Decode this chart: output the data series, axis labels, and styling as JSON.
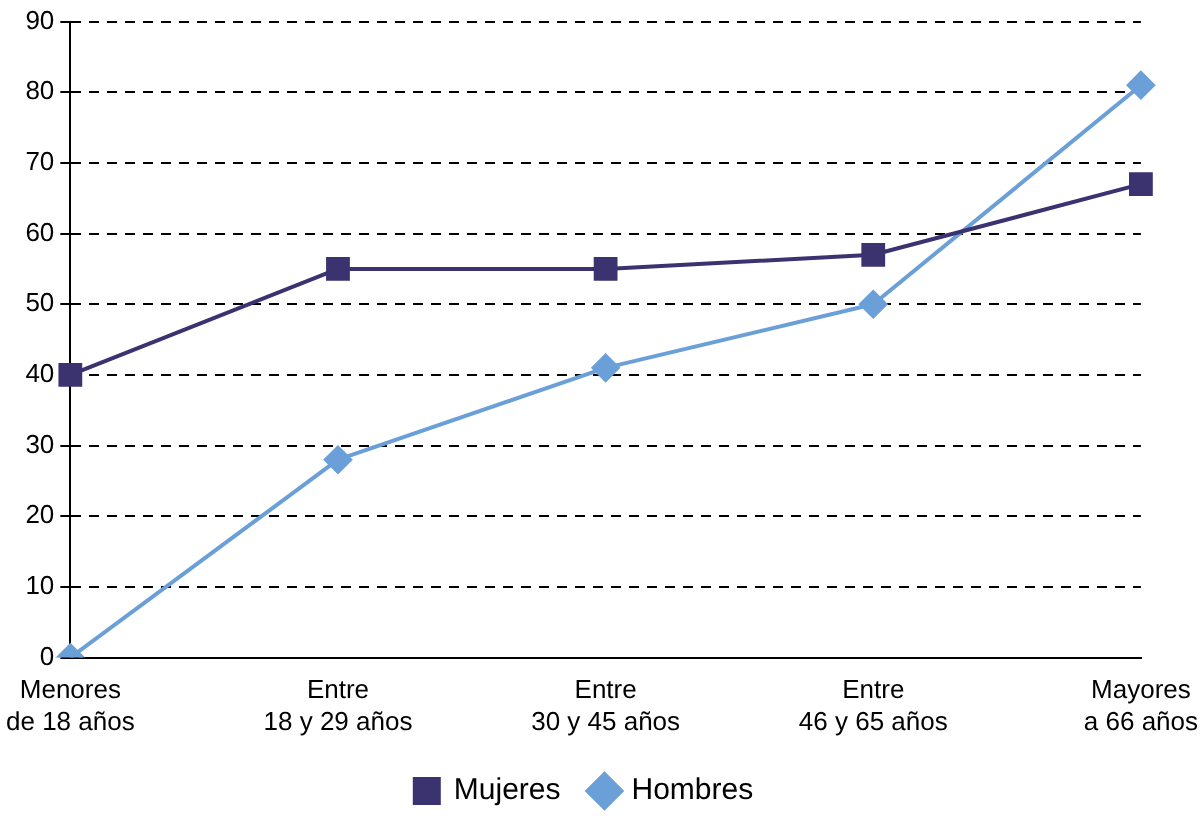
{
  "chart_data": {
    "type": "line",
    "categories": [
      "Menores\nde 18 años",
      "Entre\n18 y 29 años",
      "Entre\n30 y 45 años",
      "Entre\n46 y 65 años",
      "Mayores\na 66 años"
    ],
    "series": [
      {
        "name": "Mujeres",
        "color": "#3b3270",
        "marker": "square",
        "values": [
          40,
          55,
          55,
          57,
          67
        ]
      },
      {
        "name": "Hombres",
        "color": "#6a9fd8",
        "marker": "diamond",
        "values": [
          0,
          28,
          41,
          50,
          81
        ]
      }
    ],
    "ylim": [
      0,
      90
    ],
    "yticks": [
      0,
      10,
      20,
      30,
      40,
      50,
      60,
      70,
      80,
      90
    ],
    "grid": "y",
    "legend": "bottom",
    "line_style": "solid"
  }
}
